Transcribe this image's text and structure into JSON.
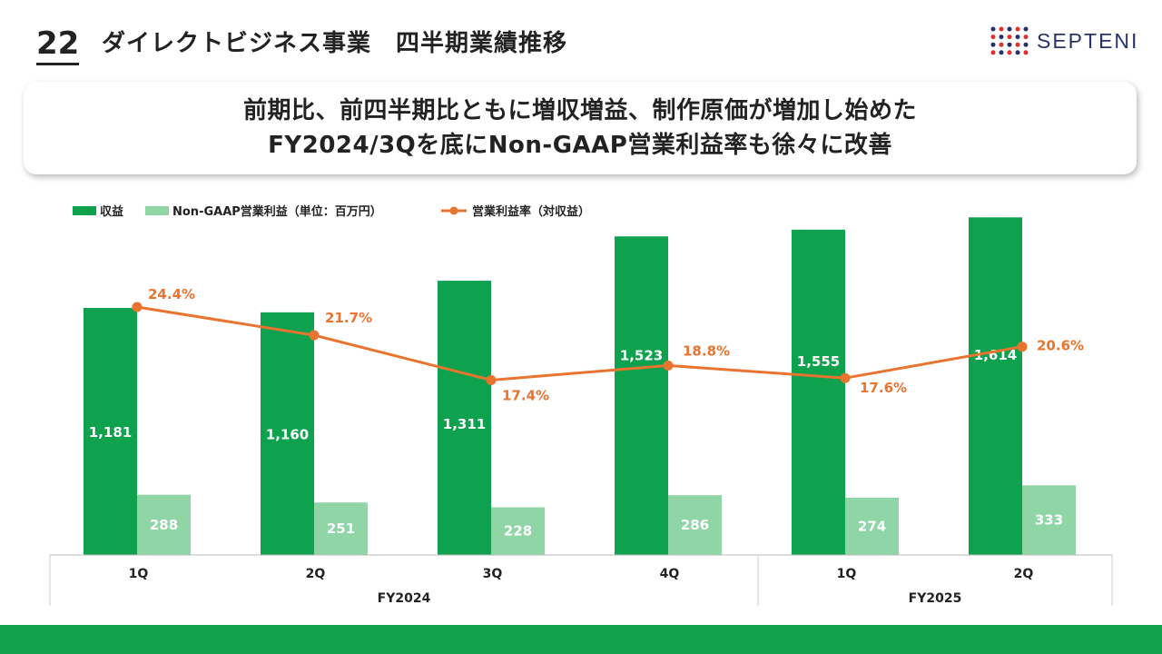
{
  "header": {
    "page_number": "22",
    "title": "ダイレクトビジネス事業　四半期業績推移",
    "logo_text": "SEPTENI"
  },
  "headline": {
    "line1": "前期比、前四半期比ともに増収増益、制作原価が増加し始めた",
    "line2": "FY2024/3Qを底にNon-GAAP営業利益率も徐々に改善"
  },
  "colors": {
    "revenue": "#0ea24f",
    "profit": "#8fd5a6",
    "margin": "#e8742f",
    "footer": "#11a04c",
    "logo_navy": "#27326d",
    "logo_red": "#e0312f"
  },
  "chart_data": {
    "type": "bar",
    "legend": [
      {
        "label": "収益",
        "kind": "bar"
      },
      {
        "label": "Non-GAAP営業利益（単位：百万円）",
        "kind": "bar"
      },
      {
        "label": "営業利益率（対収益）",
        "kind": "line"
      }
    ],
    "categories": [
      "1Q",
      "2Q",
      "3Q",
      "4Q",
      "1Q",
      "2Q"
    ],
    "groups": [
      {
        "label": "FY2024",
        "count": 4
      },
      {
        "label": "FY2025",
        "count": 2
      }
    ],
    "series": [
      {
        "name": "収益",
        "type": "bar",
        "values": [
          1181,
          1160,
          1311,
          1523,
          1555,
          1614
        ],
        "labels": [
          "1,181",
          "1,160",
          "1,311",
          "1,523",
          "1,555",
          "1,614"
        ]
      },
      {
        "name": "Non-GAAP営業利益（単位：百万円）",
        "type": "bar",
        "values": [
          288,
          251,
          228,
          286,
          274,
          333
        ],
        "labels": [
          "288",
          "251",
          "228",
          "286",
          "274",
          "333"
        ]
      },
      {
        "name": "営業利益率（対収益）",
        "type": "line",
        "values": [
          24.4,
          21.7,
          17.4,
          18.8,
          17.6,
          20.6
        ],
        "labels": [
          "24.4%",
          "21.7%",
          "17.4%",
          "18.8%",
          "17.6%",
          "20.6%"
        ]
      }
    ]
  }
}
